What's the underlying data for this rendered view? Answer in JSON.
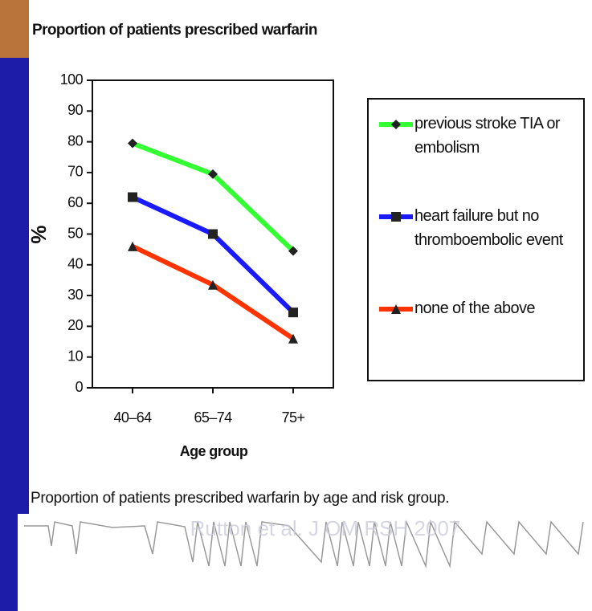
{
  "chart_data": {
    "type": "line",
    "title": "Proportion of patients prescribed warfarin",
    "y_label": "%",
    "x_label": "Age group",
    "caption": "Proportion of patients prescribed warfarin by age and risk group.",
    "source": "Rutton et al. J OM RSH 2007",
    "categories": [
      "40–64",
      "65–74",
      "75+"
    ],
    "series": [
      {
        "name": "previous stroke TIA or embolism",
        "color": "#33ff33",
        "marker": "diamond",
        "values": [
          79.5,
          69.5,
          44.5
        ]
      },
      {
        "name": "heart failure but no thromboembolic event",
        "color": "#1a1aff",
        "marker": "square",
        "values": [
          62,
          50,
          24.5
        ]
      },
      {
        "name": "none of the above",
        "color": "#ff3300",
        "marker": "triangle",
        "values": [
          46,
          33.5,
          16
        ]
      }
    ],
    "ylim": [
      0,
      100
    ],
    "yticks": [
      0,
      10,
      20,
      30,
      40,
      50,
      60,
      70,
      80,
      90,
      100
    ]
  }
}
